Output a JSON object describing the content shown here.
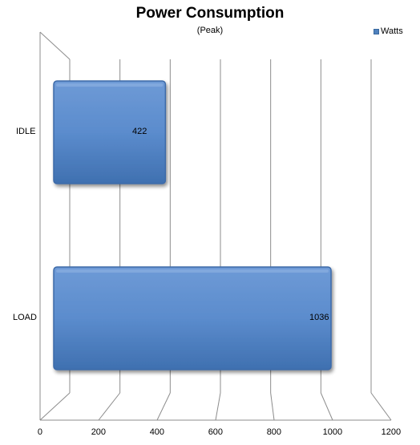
{
  "chart_data": {
    "type": "bar",
    "orientation": "horizontal",
    "title": "Power Consumption",
    "subtitle": "(Peak)",
    "xlabel": "",
    "ylabel": "",
    "categories": [
      "IDLE",
      "LOAD"
    ],
    "series": [
      {
        "name": "Watts",
        "values": [
          422,
          1036
        ],
        "color": "#4f81bd"
      }
    ],
    "xlim": [
      0,
      1200
    ],
    "xticks": [
      "0",
      "200",
      "400",
      "600",
      "800",
      "1000",
      "1200"
    ],
    "grid": true,
    "legend": "top-right",
    "three_d": true
  }
}
